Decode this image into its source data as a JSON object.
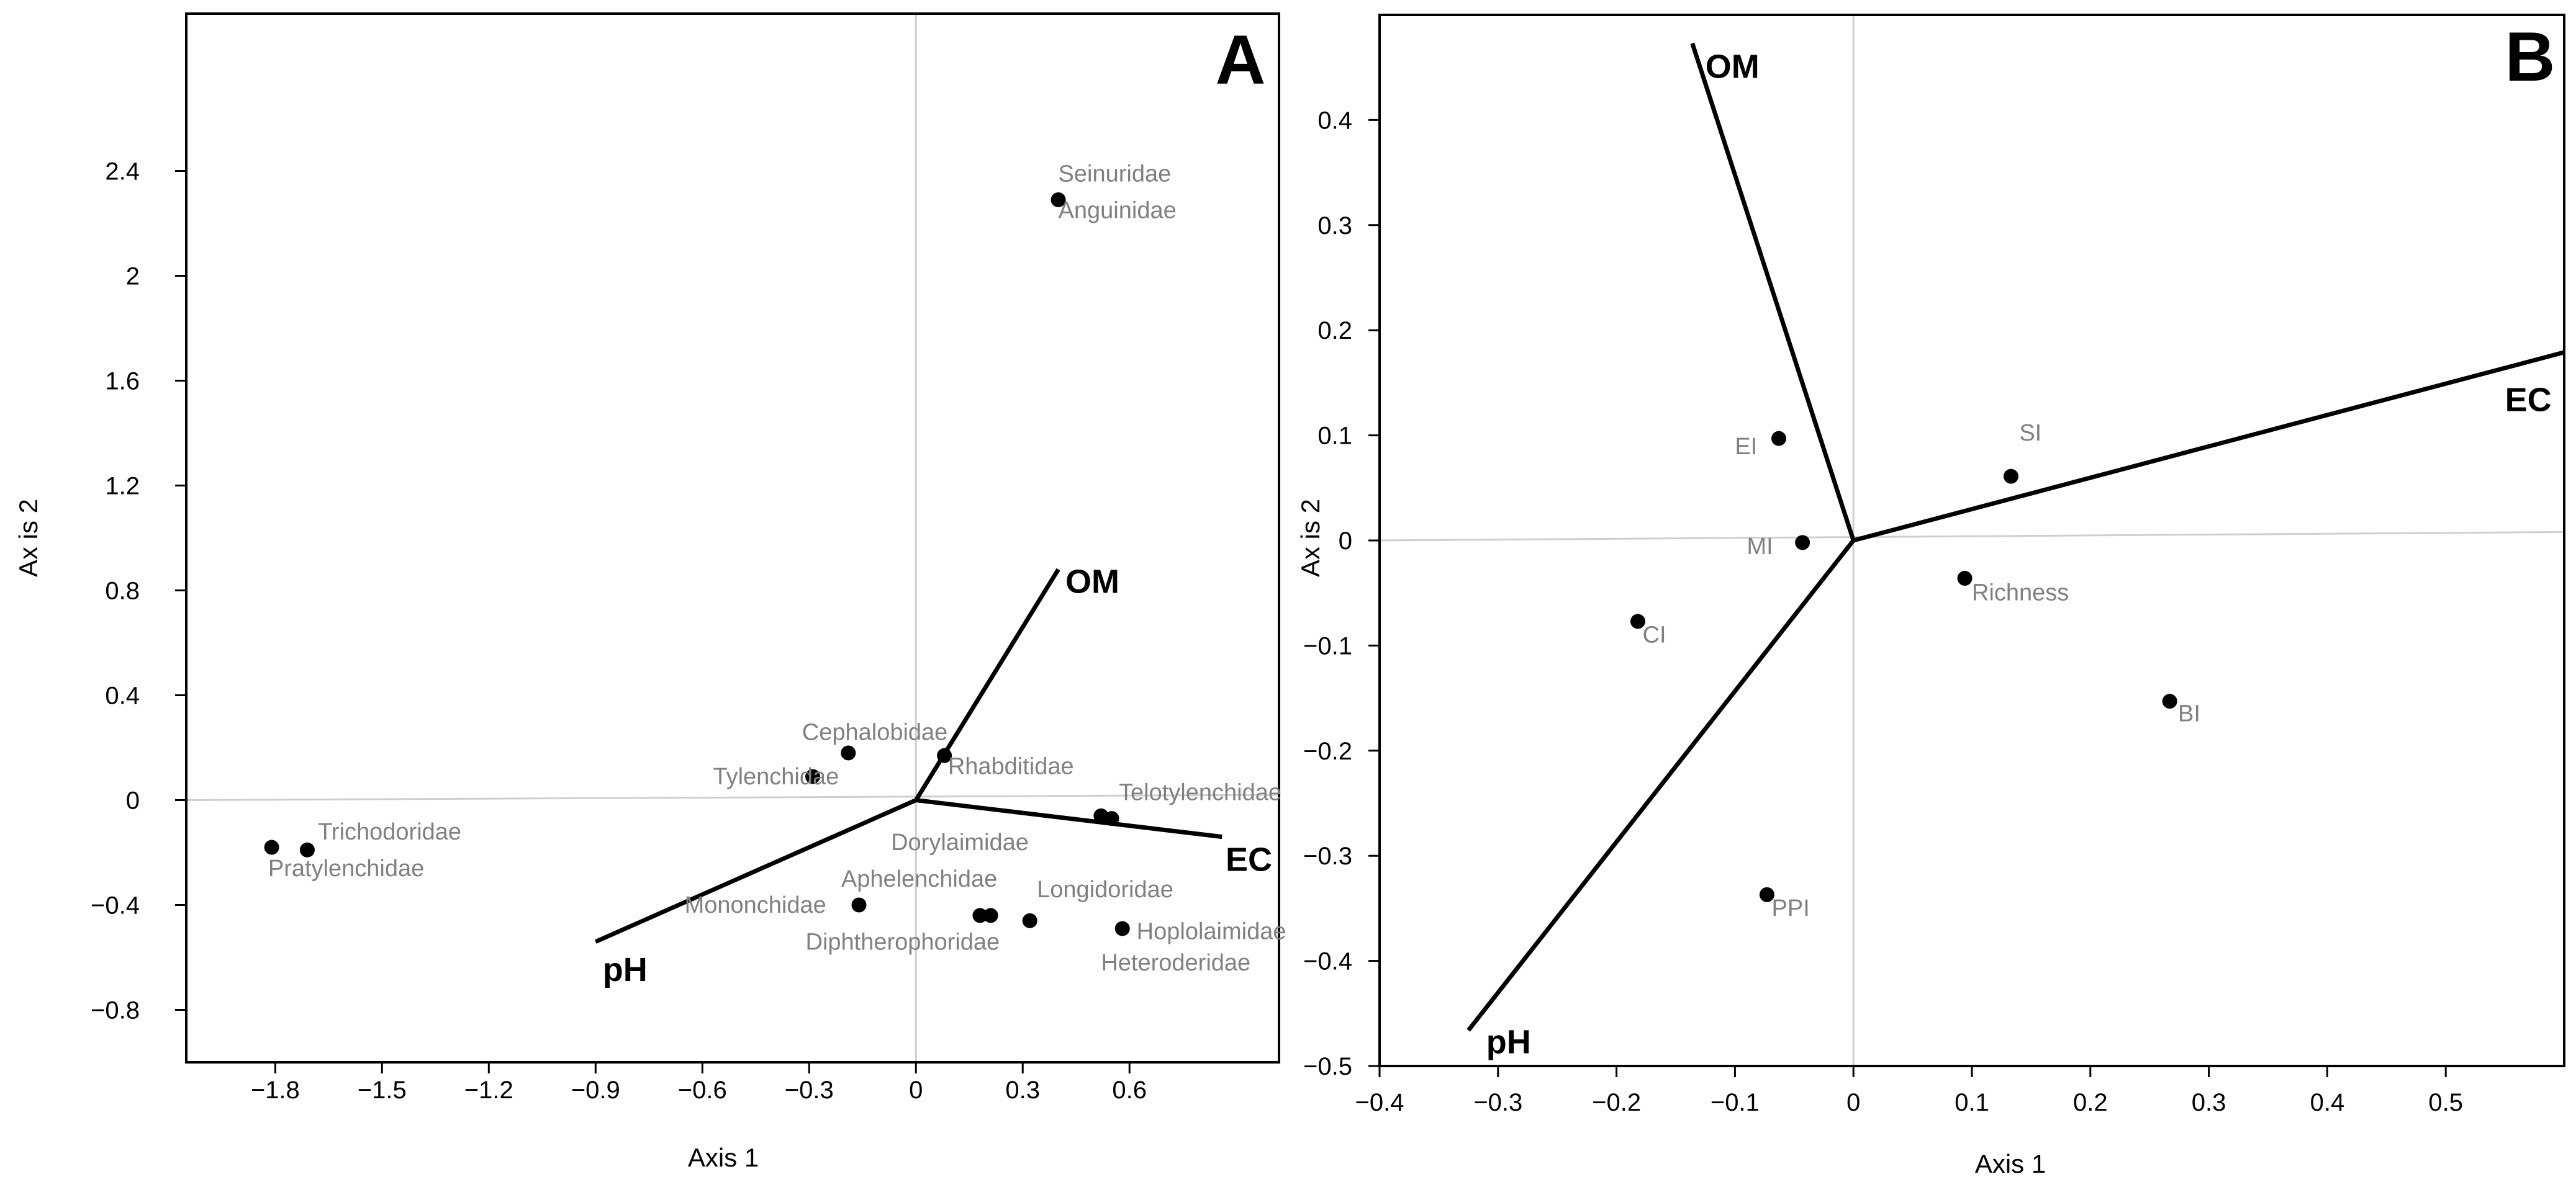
{
  "chart_data": [
    {
      "type": "scatter",
      "panel_label": "A",
      "xlabel": "Axis 1",
      "ylabel": "Ax is 2",
      "xlim": [
        -2.05,
        1.02
      ],
      "ylim": [
        -1.0,
        3.0
      ],
      "xticks": [
        -1.8,
        -1.5,
        -1.2,
        -0.9,
        -0.6,
        -0.3,
        0,
        0.3,
        0.6
      ],
      "xtick_labels": [
        "−1.8",
        "−1.5",
        "−1.2",
        "−0.9",
        "−0.6",
        "−0.3",
        "0",
        "0.3",
        "0.6"
      ],
      "yticks": [
        -0.8,
        -0.4,
        0,
        0.4,
        0.8,
        1.2,
        1.6,
        2,
        2.4
      ],
      "ytick_labels": [
        "−0.8",
        "−0.4",
        "0",
        "0.4",
        "0.8",
        "1.2",
        "1.6",
        "2",
        "2.4"
      ],
      "points": [
        {
          "x": 0.4,
          "y": 2.29
        },
        {
          "x": -1.81,
          "y": -0.18
        },
        {
          "x": -1.71,
          "y": -0.19
        },
        {
          "x": -0.19,
          "y": 0.18
        },
        {
          "x": -0.29,
          "y": 0.09
        },
        {
          "x": 0.08,
          "y": 0.17
        },
        {
          "x": 0.52,
          "y": -0.06
        },
        {
          "x": 0.55,
          "y": -0.07
        },
        {
          "x": -0.16,
          "y": -0.4
        },
        {
          "x": 0.18,
          "y": -0.44
        },
        {
          "x": 0.21,
          "y": -0.44
        },
        {
          "x": 0.32,
          "y": -0.46
        },
        {
          "x": 0.58,
          "y": -0.49
        }
      ],
      "labels": [
        {
          "text": "Seinuridae",
          "x": 0.4,
          "y": 2.36
        },
        {
          "text": "Anguinidae",
          "x": 0.4,
          "y": 2.22
        },
        {
          "text": "Trichodoridae",
          "x": -1.68,
          "y": -0.15
        },
        {
          "text": "Pratylenchidae",
          "x": -1.82,
          "y": -0.29
        },
        {
          "text": "Cephalobidae",
          "x": -0.32,
          "y": 0.23
        },
        {
          "text": "Tylenchidae",
          "x": -0.57,
          "y": 0.06
        },
        {
          "text": "Rhabditidae",
          "x": 0.09,
          "y": 0.1
        },
        {
          "text": "Telotylenchidae",
          "x": 0.57,
          "y": 0.0
        },
        {
          "text": "Dorylaimidae",
          "x": -0.07,
          "y": -0.19
        },
        {
          "text": "Aphelenchidae",
          "x": -0.21,
          "y": -0.33
        },
        {
          "text": "Mononchidae",
          "x": -0.65,
          "y": -0.43
        },
        {
          "text": "Longidoridae",
          "x": 0.34,
          "y": -0.37
        },
        {
          "text": "Diphtherophoridae",
          "x": -0.31,
          "y": -0.57
        },
        {
          "text": "Hoplolaimidae",
          "x": 0.62,
          "y": -0.53
        },
        {
          "text": "Heteroderidae",
          "x": 0.52,
          "y": -0.65
        }
      ],
      "vectors": [
        {
          "name": "OM",
          "x": 0.4,
          "y": 0.88,
          "label_x": 0.42,
          "label_y": 0.79
        },
        {
          "name": "EC",
          "x": 0.86,
          "y": -0.14,
          "label_x": 0.87,
          "label_y": -0.27
        },
        {
          "name": "pH",
          "x": -0.9,
          "y": -0.54,
          "label_x": -0.88,
          "label_y": -0.69
        }
      ],
      "ref_lines": {
        "horizontal_end_y": 0.02
      }
    },
    {
      "type": "scatter",
      "panel_label": "B",
      "xlabel": "Axis 1",
      "ylabel": "Ax is 2",
      "xlim": [
        -0.4,
        0.6
      ],
      "ylim": [
        -0.5,
        0.5
      ],
      "xticks": [
        -0.4,
        -0.3,
        -0.2,
        -0.1,
        0,
        0.1,
        0.2,
        0.3,
        0.4,
        0.5
      ],
      "xtick_labels": [
        "−0.4",
        "−0.3",
        "−0.2",
        "−0.1",
        "0",
        "0.1",
        "0.2",
        "0.3",
        "0.4",
        "0.5"
      ],
      "yticks": [
        -0.5,
        -0.4,
        -0.3,
        -0.2,
        -0.1,
        0,
        0.1,
        0.2,
        0.3,
        0.4
      ],
      "ytick_labels": [
        "−0.5",
        "−0.4",
        "−0.3",
        "−0.2",
        "−0.1",
        "0",
        "0.1",
        "0.2",
        "0.3",
        "0.4"
      ],
      "points": [
        {
          "x": -0.063,
          "y": 0.097
        },
        {
          "x": 0.133,
          "y": 0.061
        },
        {
          "x": -0.043,
          "y": -0.002
        },
        {
          "x": 0.094,
          "y": -0.036
        },
        {
          "x": -0.182,
          "y": -0.077
        },
        {
          "x": 0.267,
          "y": -0.153
        },
        {
          "x": -0.073,
          "y": -0.337
        }
      ],
      "labels": [
        {
          "text": "EI",
          "x": -0.1,
          "y": 0.082
        },
        {
          "text": "SI",
          "x": 0.14,
          "y": 0.095
        },
        {
          "text": "MI",
          "x": -0.09,
          "y": -0.013
        },
        {
          "text": "Richness",
          "x": 0.1,
          "y": -0.057
        },
        {
          "text": "CI",
          "x": -0.178,
          "y": -0.097
        },
        {
          "text": "BI",
          "x": 0.274,
          "y": -0.172
        },
        {
          "text": "PPI",
          "x": -0.069,
          "y": -0.357
        }
      ],
      "vectors": [
        {
          "name": "OM",
          "x": -0.136,
          "y": 0.473,
          "label_x": -0.125,
          "label_y": 0.44
        },
        {
          "name": "EC",
          "x": 0.6,
          "y": 0.179,
          "label_x": 0.55,
          "label_y": 0.123
        },
        {
          "name": "pH",
          "x": -0.325,
          "y": -0.466,
          "label_x": -0.31,
          "label_y": -0.488
        }
      ],
      "ref_lines": {
        "horizontal_end_y": 0.008
      }
    }
  ]
}
